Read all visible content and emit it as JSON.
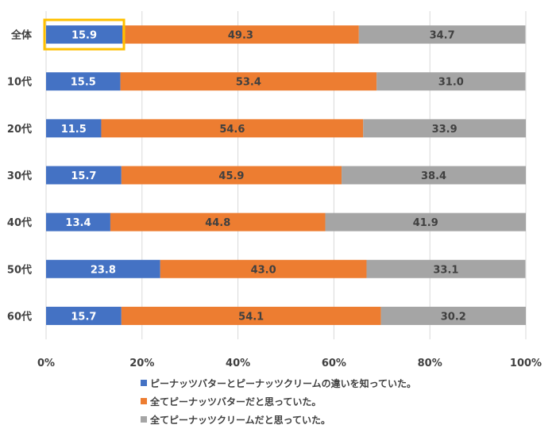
{
  "chart_data": {
    "type": "bar",
    "orientation": "horizontal",
    "stacked": true,
    "percent": true,
    "categories": [
      "全体",
      "10代",
      "20代",
      "30代",
      "40代",
      "50代",
      "60代"
    ],
    "series": [
      {
        "name": "ピーナッツバターとピーナッツクリームの違いを知っていた。",
        "color": "#4472C4",
        "label_color": "#ffffff",
        "values": [
          15.9,
          15.5,
          11.5,
          15.7,
          13.4,
          23.8,
          15.7
        ]
      },
      {
        "name": "全てピーナッツバターだと思っていた。",
        "color": "#ED7D31",
        "label_color": "#404040",
        "values": [
          49.3,
          53.4,
          54.6,
          45.9,
          44.8,
          43.0,
          54.1
        ]
      },
      {
        "name": "全てピーナッツクリームだと思っていた。",
        "color": "#A5A5A5",
        "label_color": "#404040",
        "values": [
          34.7,
          31.0,
          33.9,
          38.4,
          41.9,
          33.1,
          30.2
        ]
      }
    ],
    "xlim": [
      0,
      100
    ],
    "xticks": [
      0,
      20,
      40,
      60,
      80,
      100
    ],
    "xtick_labels": [
      "0%",
      "20%",
      "40%",
      "60%",
      "80%",
      "100%"
    ],
    "grid": true,
    "legend_position": "bottom",
    "highlight": {
      "category": "全体",
      "series": 0,
      "color": "#FFC000"
    }
  }
}
